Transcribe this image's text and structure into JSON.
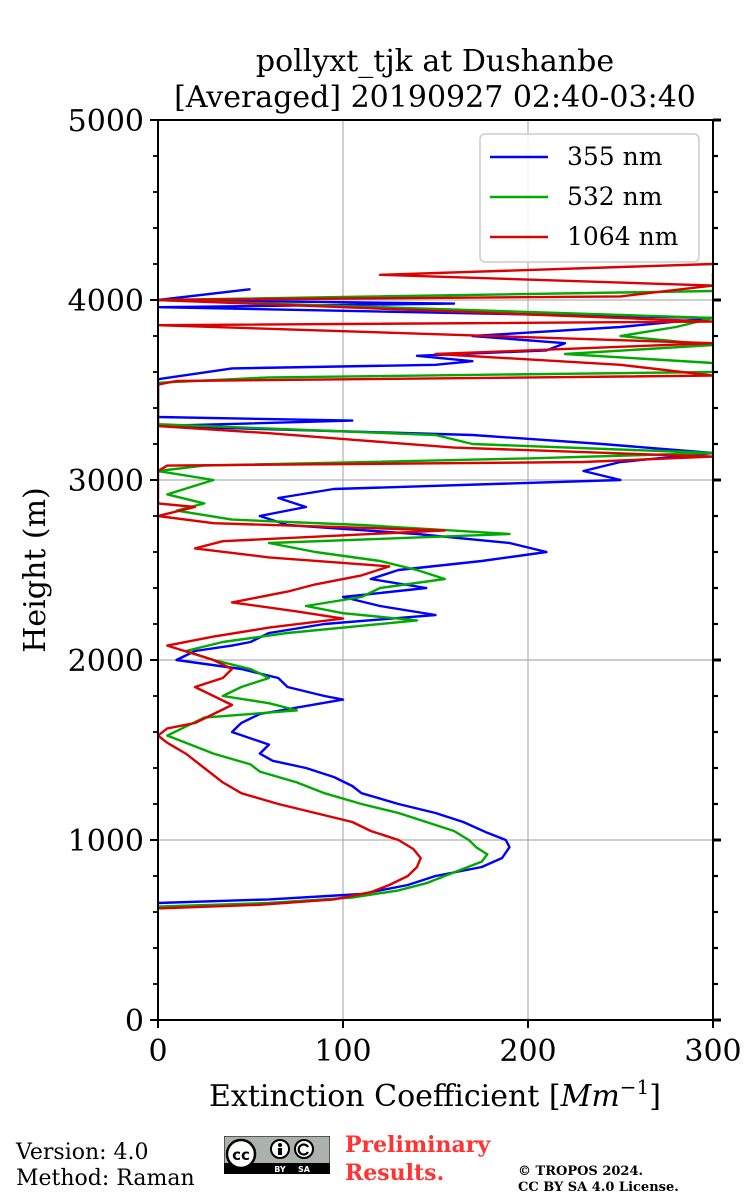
{
  "chart_data": {
    "type": "line",
    "title_line1": "pollyxt_tjk at Dushanbe",
    "title_line2": "[Averaged] 20190927 02:40-03:40",
    "xlabel_text": "Extinction Coefficient [",
    "xlabel_unit": "Mm",
    "xlabel_exp": "−1",
    "xlabel_close": "]",
    "ylabel": "Height (m)",
    "xlim": [
      0,
      300
    ],
    "ylim": [
      0,
      5000
    ],
    "xticks": [
      0,
      100,
      200,
      300
    ],
    "xtick_labels": [
      "0",
      "100",
      "200",
      "300"
    ],
    "yticks": [
      0,
      1000,
      2000,
      3000,
      4000,
      5000
    ],
    "ytick_labels": [
      "0",
      "1000",
      "2000",
      "3000",
      "4000",
      "5000"
    ],
    "grid": true,
    "legend_position": "top-right",
    "series": [
      {
        "name": "355 nm",
        "color": "#0000ff",
        "points": [
          [
            0,
            650
          ],
          [
            60,
            670
          ],
          [
            110,
            700
          ],
          [
            135,
            750
          ],
          [
            150,
            800
          ],
          [
            175,
            850
          ],
          [
            186,
            900
          ],
          [
            190,
            960
          ],
          [
            188,
            1000
          ],
          [
            178,
            1040
          ],
          [
            165,
            1100
          ],
          [
            150,
            1150
          ],
          [
            130,
            1200
          ],
          [
            110,
            1260
          ],
          [
            105,
            1300
          ],
          [
            95,
            1350
          ],
          [
            80,
            1400
          ],
          [
            62,
            1440
          ],
          [
            55,
            1480
          ],
          [
            60,
            1530
          ],
          [
            40,
            1600
          ],
          [
            45,
            1650
          ],
          [
            55,
            1700
          ],
          [
            100,
            1780
          ],
          [
            90,
            1800
          ],
          [
            70,
            1850
          ],
          [
            65,
            1900
          ],
          [
            45,
            1950
          ],
          [
            10,
            2000
          ],
          [
            20,
            2050
          ],
          [
            40,
            2080
          ],
          [
            50,
            2100
          ],
          [
            60,
            2150
          ],
          [
            90,
            2200
          ],
          [
            150,
            2250
          ],
          [
            120,
            2300
          ],
          [
            100,
            2350
          ],
          [
            145,
            2400
          ],
          [
            115,
            2450
          ],
          [
            130,
            2500
          ],
          [
            175,
            2550
          ],
          [
            210,
            2600
          ],
          [
            190,
            2650
          ],
          [
            140,
            2700
          ],
          [
            70,
            2750
          ],
          [
            55,
            2800
          ],
          [
            80,
            2850
          ],
          [
            65,
            2900
          ],
          [
            95,
            2950
          ],
          [
            250,
            3000
          ],
          [
            230,
            3050
          ],
          [
            250,
            3100
          ],
          [
            300,
            3150
          ],
          [
            240,
            3200
          ],
          [
            170,
            3250
          ],
          [
            0,
            3300
          ],
          [
            105,
            3330
          ],
          [
            0,
            3350
          ],
          [
            0,
            3430
          ],
          [
            0,
            3560
          ],
          [
            40,
            3620
          ],
          [
            150,
            3640
          ],
          [
            170,
            3660
          ],
          [
            140,
            3690
          ],
          [
            210,
            3720
          ],
          [
            220,
            3760
          ],
          [
            170,
            3800
          ],
          [
            250,
            3850
          ],
          [
            300,
            3900
          ],
          [
            0,
            3960
          ],
          [
            160,
            3980
          ],
          [
            0,
            4000
          ],
          [
            50,
            4060
          ]
        ]
      },
      {
        "name": "532 nm",
        "color": "#00aa00",
        "points": [
          [
            0,
            630
          ],
          [
            60,
            650
          ],
          [
            105,
            680
          ],
          [
            130,
            720
          ],
          [
            145,
            760
          ],
          [
            160,
            820
          ],
          [
            175,
            880
          ],
          [
            178,
            920
          ],
          [
            172,
            960
          ],
          [
            168,
            1000
          ],
          [
            160,
            1050
          ],
          [
            145,
            1100
          ],
          [
            130,
            1150
          ],
          [
            110,
            1200
          ],
          [
            90,
            1260
          ],
          [
            75,
            1320
          ],
          [
            55,
            1380
          ],
          [
            50,
            1420
          ],
          [
            30,
            1480
          ],
          [
            15,
            1540
          ],
          [
            5,
            1580
          ],
          [
            15,
            1630
          ],
          [
            25,
            1680
          ],
          [
            75,
            1720
          ],
          [
            60,
            1760
          ],
          [
            35,
            1800
          ],
          [
            45,
            1850
          ],
          [
            60,
            1900
          ],
          [
            50,
            1950
          ],
          [
            30,
            2000
          ],
          [
            15,
            2050
          ],
          [
            35,
            2100
          ],
          [
            70,
            2150
          ],
          [
            140,
            2220
          ],
          [
            100,
            2260
          ],
          [
            80,
            2300
          ],
          [
            110,
            2350
          ],
          [
            120,
            2400
          ],
          [
            155,
            2450
          ],
          [
            140,
            2500
          ],
          [
            120,
            2550
          ],
          [
            85,
            2600
          ],
          [
            60,
            2650
          ],
          [
            190,
            2700
          ],
          [
            110,
            2750
          ],
          [
            40,
            2780
          ],
          [
            10,
            2830
          ],
          [
            25,
            2870
          ],
          [
            5,
            2920
          ],
          [
            30,
            3000
          ],
          [
            0,
            3050
          ],
          [
            25,
            3080
          ],
          [
            200,
            3120
          ],
          [
            300,
            3150
          ],
          [
            170,
            3200
          ],
          [
            150,
            3250
          ],
          [
            50,
            3290
          ],
          [
            0,
            3310
          ],
          [
            0,
            3540
          ],
          [
            60,
            3570
          ],
          [
            300,
            3600
          ],
          [
            300,
            3650
          ],
          [
            220,
            3700
          ],
          [
            300,
            3750
          ],
          [
            250,
            3800
          ],
          [
            280,
            3850
          ],
          [
            300,
            3900
          ],
          [
            0,
            4000
          ],
          [
            300,
            4050
          ],
          [
            300,
            4100
          ],
          [
            300,
            4150
          ]
        ]
      },
      {
        "name": "1064 nm",
        "color": "#dd0000",
        "points": [
          [
            0,
            620
          ],
          [
            55,
            640
          ],
          [
            95,
            670
          ],
          [
            115,
            710
          ],
          [
            125,
            750
          ],
          [
            135,
            800
          ],
          [
            140,
            850
          ],
          [
            142,
            900
          ],
          [
            138,
            950
          ],
          [
            130,
            1000
          ],
          [
            115,
            1050
          ],
          [
            105,
            1100
          ],
          [
            85,
            1150
          ],
          [
            65,
            1200
          ],
          [
            45,
            1260
          ],
          [
            35,
            1320
          ],
          [
            25,
            1400
          ],
          [
            15,
            1480
          ],
          [
            5,
            1540
          ],
          [
            0,
            1580
          ],
          [
            5,
            1620
          ],
          [
            20,
            1650
          ],
          [
            30,
            1700
          ],
          [
            40,
            1750
          ],
          [
            30,
            1800
          ],
          [
            20,
            1850
          ],
          [
            35,
            1900
          ],
          [
            40,
            1950
          ],
          [
            30,
            2000
          ],
          [
            5,
            2080
          ],
          [
            30,
            2130
          ],
          [
            60,
            2180
          ],
          [
            100,
            2230
          ],
          [
            75,
            2270
          ],
          [
            40,
            2320
          ],
          [
            70,
            2380
          ],
          [
            85,
            2420
          ],
          [
            110,
            2470
          ],
          [
            125,
            2520
          ],
          [
            60,
            2570
          ],
          [
            20,
            2620
          ],
          [
            35,
            2660
          ],
          [
            155,
            2720
          ],
          [
            30,
            2760
          ],
          [
            0,
            2800
          ],
          [
            20,
            2850
          ],
          [
            0,
            2870
          ],
          [
            0,
            3050
          ],
          [
            5,
            3080
          ],
          [
            230,
            3100
          ],
          [
            300,
            3130
          ],
          [
            160,
            3180
          ],
          [
            110,
            3220
          ],
          [
            60,
            3260
          ],
          [
            0,
            3300
          ],
          [
            0,
            3530
          ],
          [
            10,
            3550
          ],
          [
            300,
            3580
          ],
          [
            250,
            3640
          ],
          [
            150,
            3700
          ],
          [
            300,
            3760
          ],
          [
            0,
            3860
          ],
          [
            300,
            3880
          ],
          [
            0,
            4000
          ],
          [
            250,
            4020
          ],
          [
            300,
            4080
          ],
          [
            120,
            4140
          ],
          [
            300,
            4200
          ]
        ]
      }
    ]
  },
  "footer": {
    "version": "Version: 4.0",
    "method": "Method: Raman",
    "prelim_line1": "Preliminary",
    "prelim_line2": "Results.",
    "copyright_line1": "© TROPOS 2024.",
    "copyright_line2": "CC BY SA 4.0 License.",
    "cc_text": "cc",
    "cc_by": "BY",
    "cc_sa": "SA"
  }
}
